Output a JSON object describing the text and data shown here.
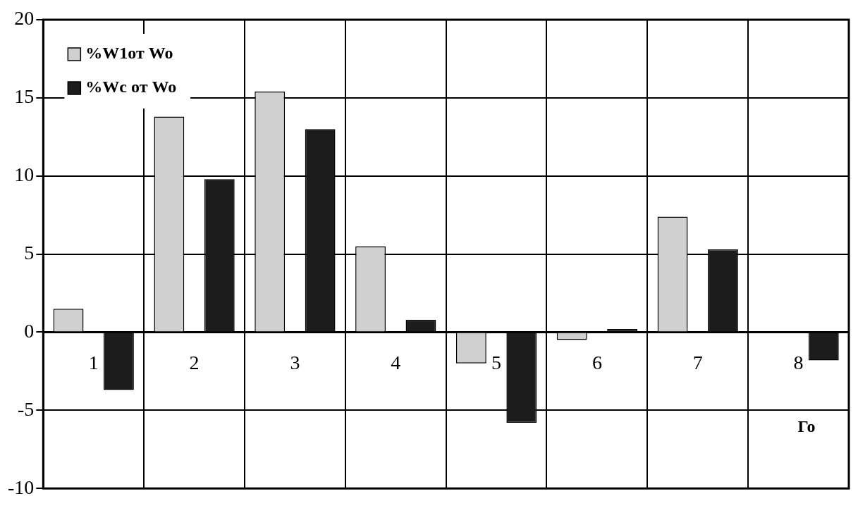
{
  "chart_data": {
    "type": "bar",
    "xlabel": "Го",
    "categories": [
      "1",
      "2",
      "3",
      "4",
      "5",
      "6",
      "7",
      "8"
    ],
    "series": [
      {
        "name": "%W1от Wo",
        "color": "#d0d0d0",
        "values": [
          1.5,
          13.8,
          15.4,
          5.5,
          -2,
          -0.5,
          7.4,
          null
        ]
      },
      {
        "name": "%Wc от Wo",
        "color": "#1c1c1c",
        "values": [
          -3.7,
          9.8,
          13,
          0.8,
          -5.8,
          0.2,
          5.3,
          -1.8
        ]
      }
    ],
    "ylim": [
      -10,
      20
    ],
    "yticks": [
      -10,
      -5,
      0,
      5,
      10,
      15,
      20
    ],
    "grid": true,
    "legend": "top left"
  }
}
